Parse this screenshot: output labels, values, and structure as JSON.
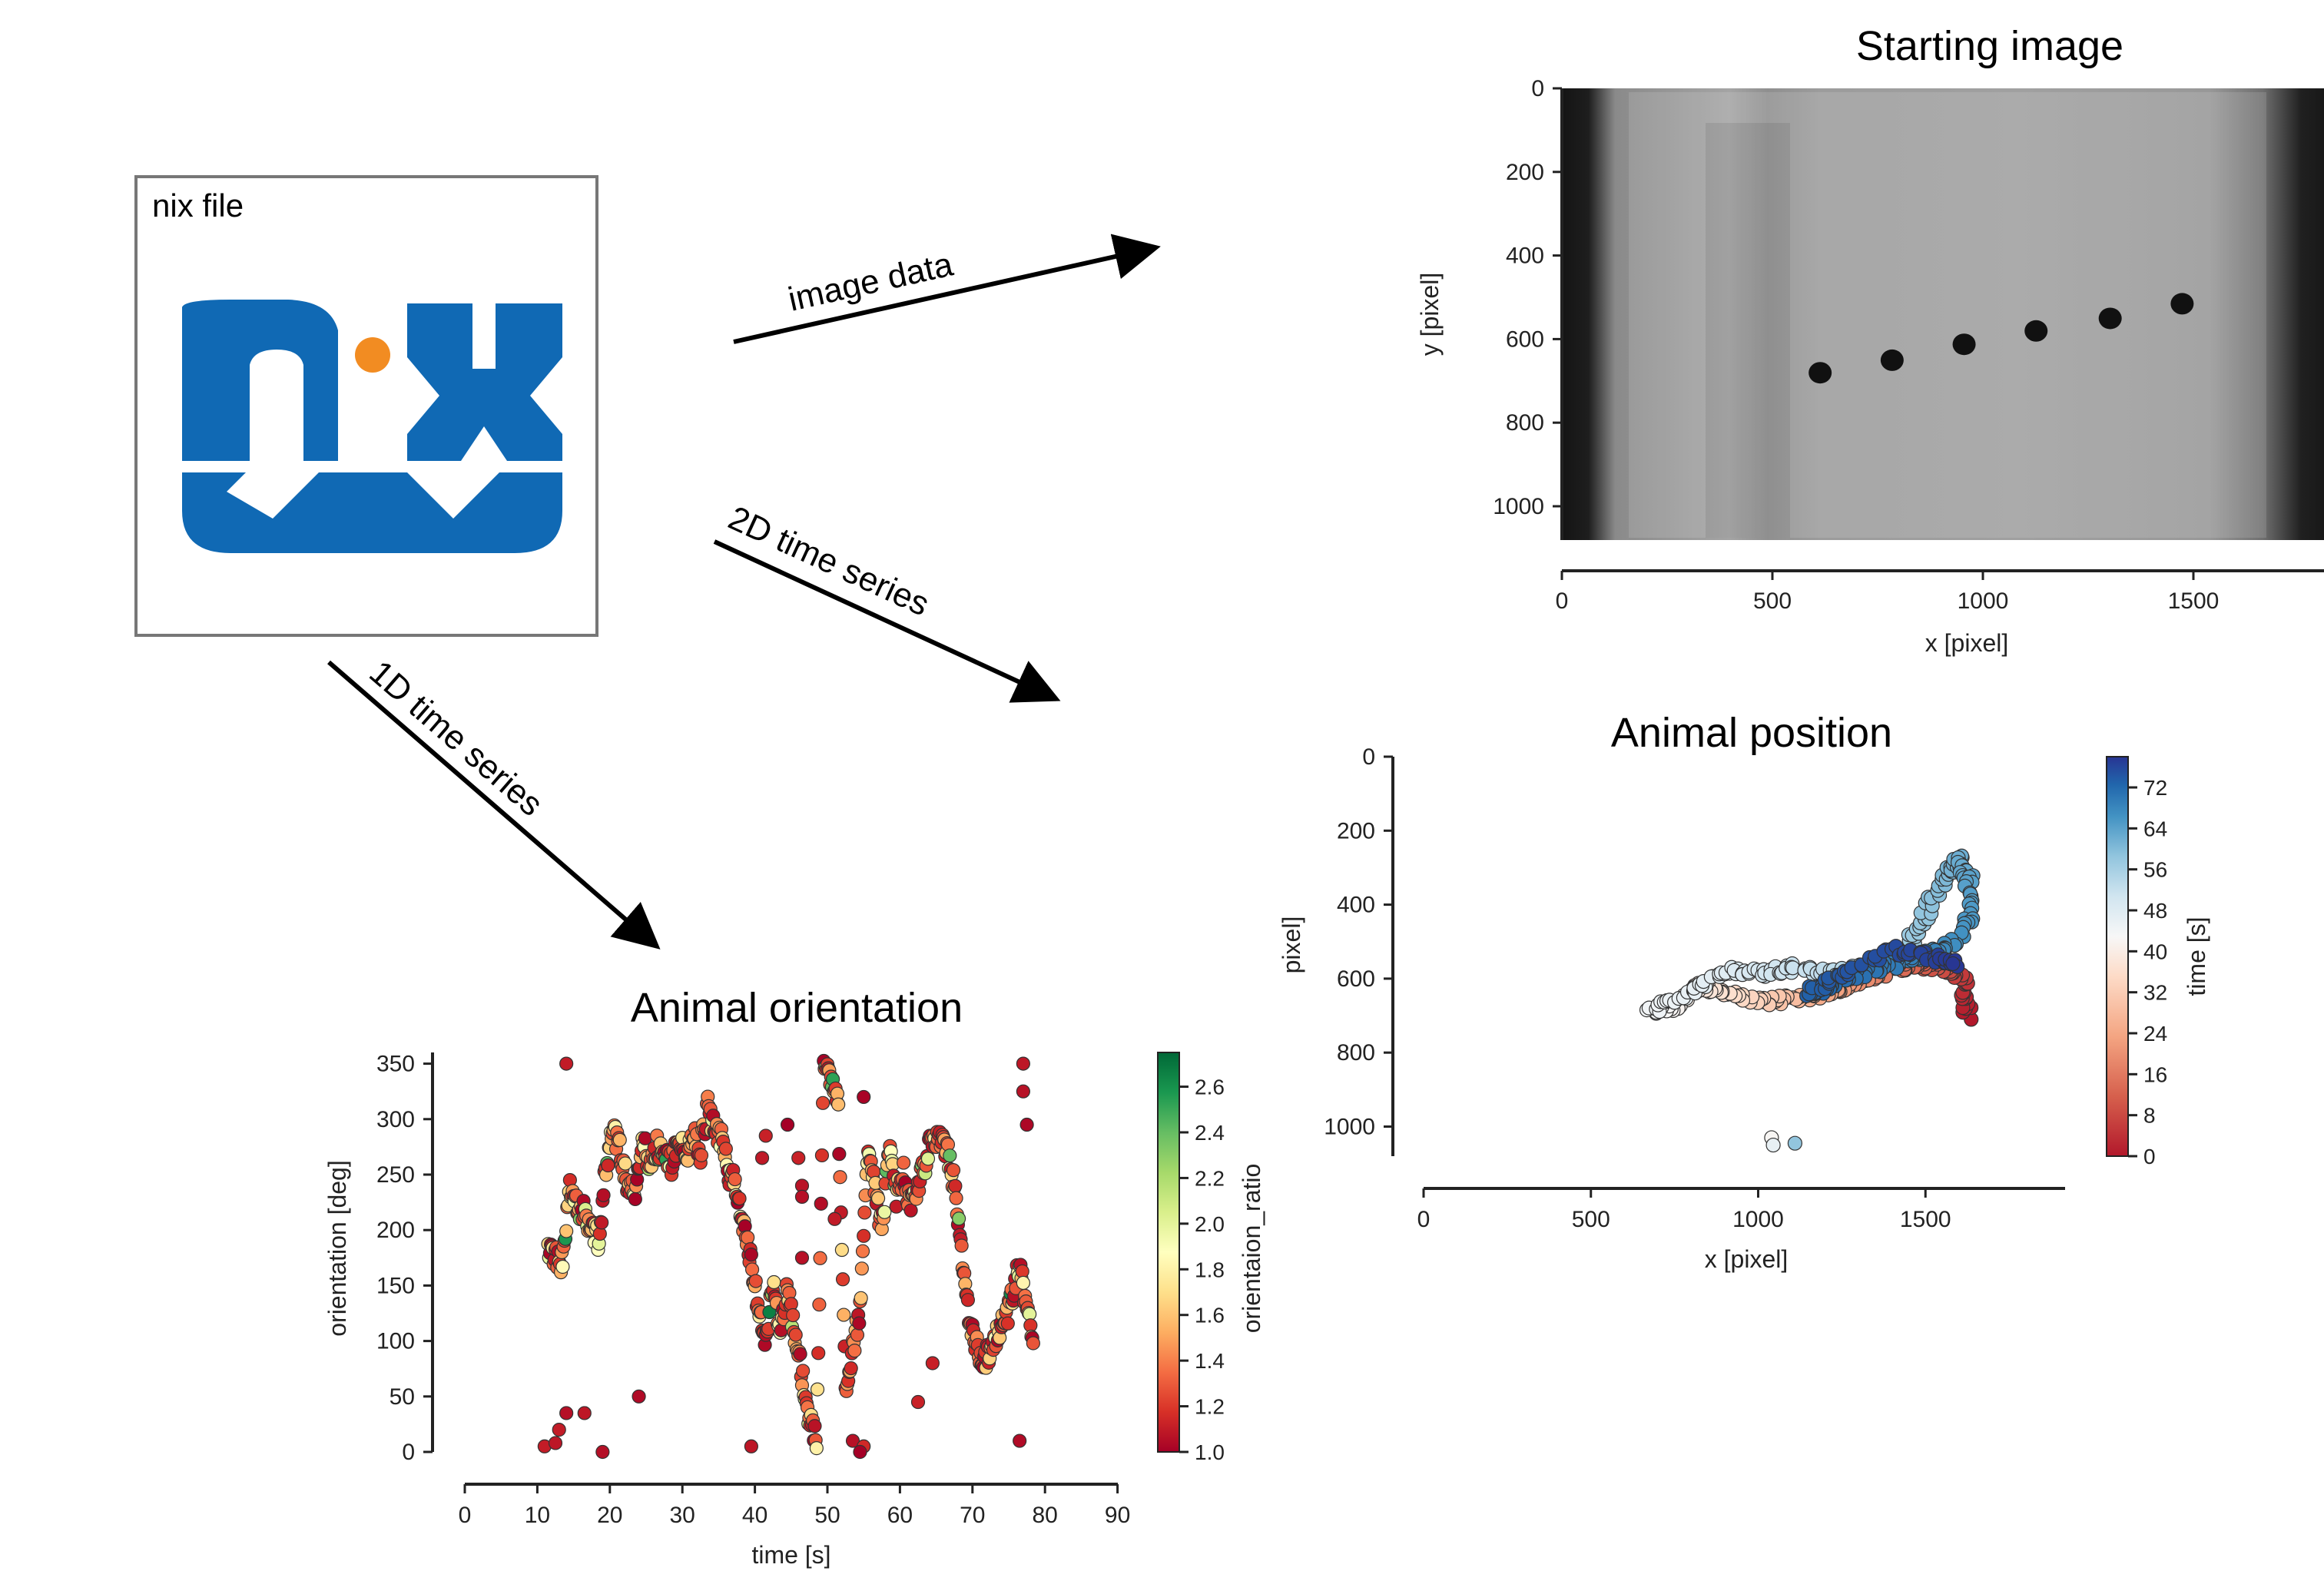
{
  "nix_box": {
    "label": "nix file",
    "logo_text": "nix",
    "logo_color": "#1069b4",
    "logo_dot_color": "#f28c22"
  },
  "arrows": {
    "image": "image data",
    "series2d": "2D time series",
    "series1d": "1D time series"
  },
  "starting_image": {
    "title": "Starting image",
    "xlabel": "x [pixel]",
    "ylabel": "y [pixel]",
    "xticks": [
      0,
      500,
      1000,
      1500
    ],
    "yticks": [
      0,
      200,
      400,
      600,
      800,
      1000
    ],
    "xlim": [
      0,
      1800
    ],
    "ylim": [
      1080,
      0
    ],
    "dots": [
      {
        "x": 610,
        "y": 680
      },
      {
        "x": 780,
        "y": 650
      },
      {
        "x": 950,
        "y": 612
      },
      {
        "x": 1120,
        "y": 580
      },
      {
        "x": 1295,
        "y": 550
      },
      {
        "x": 1465,
        "y": 515
      }
    ]
  },
  "chart_data": [
    {
      "type": "scatter",
      "title": "Animal position",
      "xlabel": "x [pixel]",
      "ylabel": "pixel]",
      "colorbar_label": "time [s]",
      "xlim": [
        0,
        1920
      ],
      "ylim": [
        1080,
        0
      ],
      "xticks": [
        0,
        500,
        1000,
        1500
      ],
      "yticks": [
        0,
        200,
        400,
        600,
        800,
        1000
      ],
      "colorbar_ticks": [
        0,
        8,
        16,
        24,
        32,
        40,
        48,
        56,
        64,
        72
      ],
      "clim": [
        0,
        78
      ],
      "colormap": [
        "#b2182b",
        "#d6604d",
        "#f4a582",
        "#fddbc7",
        "#f7f7f7",
        "#d1e5f0",
        "#92c5de",
        "#4393c3",
        "#2166ac",
        "#283593"
      ],
      "path": [
        {
          "t": 0,
          "x": 1625,
          "y": 700
        },
        {
          "t": 3,
          "x": 1620,
          "y": 610
        },
        {
          "t": 6,
          "x": 1560,
          "y": 570
        },
        {
          "t": 9,
          "x": 1470,
          "y": 560
        },
        {
          "t": 12,
          "x": 1380,
          "y": 585
        },
        {
          "t": 15,
          "x": 1290,
          "y": 610
        },
        {
          "t": 18,
          "x": 1200,
          "y": 640
        },
        {
          "t": 21,
          "x": 1110,
          "y": 655
        },
        {
          "t": 24,
          "x": 1010,
          "y": 660
        },
        {
          "t": 27,
          "x": 910,
          "y": 640
        },
        {
          "t": 30,
          "x": 830,
          "y": 620
        },
        {
          "t": 33,
          "x": 760,
          "y": 670
        },
        {
          "t": 36,
          "x": 680,
          "y": 690
        },
        {
          "t": 38,
          "x": 800,
          "y": 640
        },
        {
          "t": 40,
          "x": 900,
          "y": 580
        },
        {
          "t": 42,
          "x": 1000,
          "y": 585
        },
        {
          "t": 44,
          "x": 1100,
          "y": 570
        },
        {
          "t": 46,
          "x": 1220,
          "y": 585
        },
        {
          "t": 48,
          "x": 1350,
          "y": 560
        },
        {
          "t": 50,
          "x": 1450,
          "y": 520
        },
        {
          "t": 52,
          "x": 1500,
          "y": 420
        },
        {
          "t": 54,
          "x": 1560,
          "y": 330
        },
        {
          "t": 56,
          "x": 1600,
          "y": 280
        },
        {
          "t": 58,
          "x": 1630,
          "y": 330
        },
        {
          "t": 60,
          "x": 1630,
          "y": 450
        },
        {
          "t": 62,
          "x": 1560,
          "y": 520
        },
        {
          "t": 64,
          "x": 1480,
          "y": 540
        },
        {
          "t": 66,
          "x": 1370,
          "y": 570
        },
        {
          "t": 68,
          "x": 1260,
          "y": 600
        },
        {
          "t": 70,
          "x": 1150,
          "y": 640
        },
        {
          "t": 72,
          "x": 1230,
          "y": 590
        },
        {
          "t": 74,
          "x": 1400,
          "y": 520
        },
        {
          "t": 76,
          "x": 1520,
          "y": 545
        },
        {
          "t": 78,
          "x": 1600,
          "y": 565
        }
      ],
      "outliers": [
        {
          "t": 34,
          "x": 1040,
          "y": 1030
        },
        {
          "t": 38,
          "x": 1045,
          "y": 1050
        },
        {
          "t": 52,
          "x": 1110,
          "y": 1045
        }
      ]
    },
    {
      "type": "scatter",
      "title": "Animal orientation",
      "xlabel": "time [s]",
      "ylabel": "orientation [deg]",
      "colorbar_label": "orientaion_ratio",
      "xlim": [
        0,
        90
      ],
      "ylim": [
        0,
        360
      ],
      "xticks": [
        0,
        10,
        20,
        30,
        40,
        50,
        60,
        70,
        80,
        90
      ],
      "yticks": [
        0,
        50,
        100,
        150,
        200,
        250,
        300,
        350
      ],
      "colorbar_ticks": [
        1.0,
        1.2,
        1.4,
        1.6,
        1.8,
        2.0,
        2.2,
        2.4,
        2.6
      ],
      "clim": [
        1.0,
        2.75
      ],
      "colormap": [
        "#a50026",
        "#d73027",
        "#f46d43",
        "#fdae61",
        "#fee08b",
        "#ffffbf",
        "#d9ef8b",
        "#a6d96a",
        "#66bd63",
        "#1a9850",
        "#006837"
      ],
      "track": [
        {
          "t": 11.5,
          "y": 180
        },
        {
          "t": 12.5,
          "y": 175
        },
        {
          "t": 13.5,
          "y": 170
        },
        {
          "t": 14.5,
          "y": 240
        },
        {
          "t": 15.5,
          "y": 220
        },
        {
          "t": 16.5,
          "y": 215
        },
        {
          "t": 17.5,
          "y": 205
        },
        {
          "t": 18.5,
          "y": 190
        },
        {
          "t": 19.5,
          "y": 260
        },
        {
          "t": 20.5,
          "y": 290
        },
        {
          "t": 21.5,
          "y": 270
        },
        {
          "t": 22.5,
          "y": 240
        },
        {
          "t": 23.5,
          "y": 230
        },
        {
          "t": 24.5,
          "y": 280
        },
        {
          "t": 25.5,
          "y": 260
        },
        {
          "t": 26.5,
          "y": 275
        },
        {
          "t": 27.5,
          "y": 265
        },
        {
          "t": 28.5,
          "y": 260
        },
        {
          "t": 29.5,
          "y": 285
        },
        {
          "t": 30.5,
          "y": 265
        },
        {
          "t": 31.5,
          "y": 285
        },
        {
          "t": 32.5,
          "y": 270
        },
        {
          "t": 33.5,
          "y": 310
        },
        {
          "t": 34.5,
          "y": 290
        },
        {
          "t": 35.5,
          "y": 280
        },
        {
          "t": 36.5,
          "y": 250
        },
        {
          "t": 37.5,
          "y": 240
        },
        {
          "t": 38.5,
          "y": 200
        },
        {
          "t": 39.5,
          "y": 170
        },
        {
          "t": 40.5,
          "y": 130
        },
        {
          "t": 41.5,
          "y": 100
        },
        {
          "t": 42.5,
          "y": 150
        },
        {
          "t": 43.5,
          "y": 110
        },
        {
          "t": 44.5,
          "y": 150
        },
        {
          "t": 45.5,
          "y": 100
        },
        {
          "t": 46.5,
          "y": 70
        },
        {
          "t": 47.5,
          "y": 30
        },
        {
          "t": 48.5,
          "y": 10
        },
        {
          "t": 49.5,
          "y": 355
        },
        {
          "t": 50.5,
          "y": 340
        },
        {
          "t": 51.5,
          "y": 310
        },
        {
          "t": 52.5,
          "y": 60
        },
        {
          "t": 53.5,
          "y": 90
        },
        {
          "t": 54.5,
          "y": 130
        },
        {
          "t": 55.5,
          "y": 270
        },
        {
          "t": 56.5,
          "y": 240
        },
        {
          "t": 57.5,
          "y": 200
        },
        {
          "t": 58.5,
          "y": 270
        },
        {
          "t": 59.5,
          "y": 230
        },
        {
          "t": 60.5,
          "y": 250
        },
        {
          "t": 61.5,
          "y": 220
        },
        {
          "t": 62.5,
          "y": 240
        },
        {
          "t": 63.5,
          "y": 260
        },
        {
          "t": 64.5,
          "y": 285
        },
        {
          "t": 65.5,
          "y": 280
        },
        {
          "t": 66.5,
          "y": 270
        },
        {
          "t": 67.5,
          "y": 240
        },
        {
          "t": 68.5,
          "y": 180
        },
        {
          "t": 69.5,
          "y": 120
        },
        {
          "t": 70.5,
          "y": 100
        },
        {
          "t": 71.5,
          "y": 80
        },
        {
          "t": 72.5,
          "y": 95
        },
        {
          "t": 73.5,
          "y": 110
        },
        {
          "t": 74.5,
          "y": 115
        },
        {
          "t": 75.5,
          "y": 140
        },
        {
          "t": 76.5,
          "y": 170
        },
        {
          "t": 77.5,
          "y": 130
        },
        {
          "t": 78.5,
          "y": 95
        }
      ],
      "scattered": [
        {
          "t": 14,
          "y": 350
        },
        {
          "t": 13,
          "y": 20
        },
        {
          "t": 14,
          "y": 35
        },
        {
          "t": 16.5,
          "y": 35
        },
        {
          "t": 19,
          "y": 0
        },
        {
          "t": 24,
          "y": 50
        },
        {
          "t": 39.5,
          "y": 5
        },
        {
          "t": 41,
          "y": 265
        },
        {
          "t": 41.5,
          "y": 285
        },
        {
          "t": 44.5,
          "y": 295
        },
        {
          "t": 46,
          "y": 265
        },
        {
          "t": 46.5,
          "y": 240
        },
        {
          "t": 46.5,
          "y": 230
        },
        {
          "t": 46.5,
          "y": 175
        },
        {
          "t": 51,
          "y": 210
        },
        {
          "t": 55,
          "y": 320
        },
        {
          "t": 62.5,
          "y": 45
        },
        {
          "t": 64.5,
          "y": 80
        },
        {
          "t": 77,
          "y": 350
        },
        {
          "t": 77,
          "y": 325
        },
        {
          "t": 76.5,
          "y": 10
        },
        {
          "t": 77.5,
          "y": 295
        },
        {
          "t": 11,
          "y": 5
        },
        {
          "t": 12.5,
          "y": 8
        },
        {
          "t": 53.5,
          "y": 10
        },
        {
          "t": 55,
          "y": 5
        },
        {
          "t": 54.5,
          "y": 0
        }
      ]
    }
  ]
}
